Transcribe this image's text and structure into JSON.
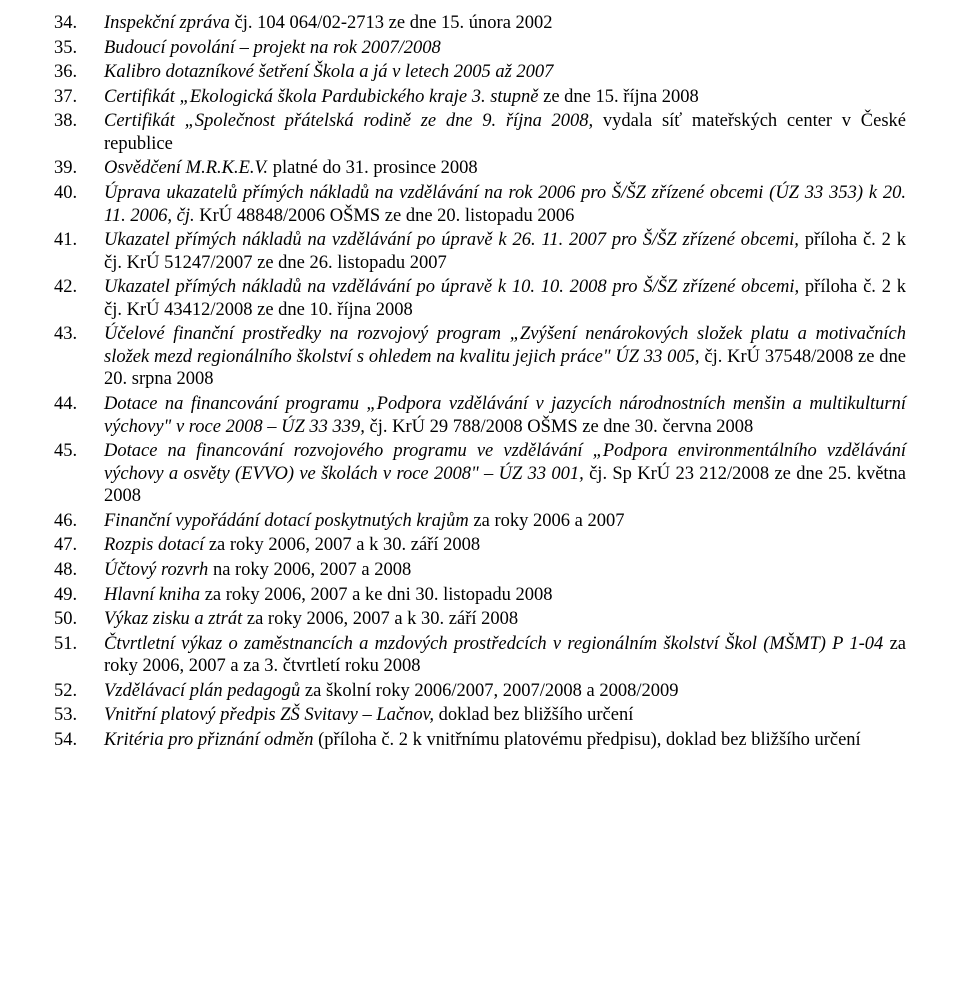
{
  "items": [
    {
      "n": "34.",
      "segs": [
        {
          "t": "Inspekční zpráva ",
          "i": true
        },
        {
          "t": "čj. 104 064/02-2713 ze dne 15. února 2002"
        }
      ]
    },
    {
      "n": "35.",
      "segs": [
        {
          "t": "Budoucí povolání – projekt na rok 2007/2008",
          "i": true
        }
      ]
    },
    {
      "n": "36.",
      "segs": [
        {
          "t": "Kalibro dotazníkové šetření Škola a já v letech 2005 až 2007",
          "i": true
        }
      ]
    },
    {
      "n": "37.",
      "segs": [
        {
          "t": "Certifikát „Ekologická škola Pardubického kraje 3. stupně ",
          "i": true
        },
        {
          "t": "ze dne 15. října 2008"
        }
      ]
    },
    {
      "n": "38.",
      "segs": [
        {
          "t": "Certifikát „Společnost přátelská rodině ze dne 9. října 2008, ",
          "i": true
        },
        {
          "t": "vydala síť mateřských center v České republice"
        }
      ]
    },
    {
      "n": "39.",
      "segs": [
        {
          "t": "Osvědčení M.R.K.E.V. ",
          "i": true
        },
        {
          "t": "platné do 31. prosince 2008"
        }
      ]
    },
    {
      "n": "40.",
      "segs": [
        {
          "t": "Úprava ukazatelů přímých nákladů na vzdělávání na rok 2006 pro Š/ŠZ zřízené obcemi (ÚZ 33 353) k 20. 11. 2006, čj. ",
          "i": true
        },
        {
          "t": "KrÚ 48848/2006 OŠMS ze dne 20. listopadu 2006"
        }
      ]
    },
    {
      "n": "41.",
      "segs": [
        {
          "t": "Ukazatel přímých nákladů na vzdělávání po úpravě k 26. 11. 2007 pro Š/ŠZ zřízené obcemi, ",
          "i": true
        },
        {
          "t": "příloha č. 2 k čj. KrÚ 51247/2007 ze dne 26. listopadu 2007"
        }
      ]
    },
    {
      "n": "42.",
      "segs": [
        {
          "t": "Ukazatel přímých nákladů na vzdělávání po úpravě k 10. 10. 2008 pro Š/ŠZ zřízené obcemi, ",
          "i": true
        },
        {
          "t": "příloha č. 2 k čj. KrÚ 43412/2008 ze dne 10. října 2008"
        }
      ]
    },
    {
      "n": "43.",
      "segs": [
        {
          "t": "Účelové finanční prostředky na rozvojový program „Zvýšení nenárokových složek platu a motivačních složek mezd regionálního školství s ohledem na kvalitu jejich práce\" ÚZ 33 005, ",
          "i": true
        },
        {
          "t": "čj. KrÚ 37548/2008 ze dne 20. srpna 2008"
        }
      ]
    },
    {
      "n": "44.",
      "segs": [
        {
          "t": "Dotace na financování programu „Podpora vzdělávání v jazycích národnostních menšin a multikulturní výchovy\" v roce 2008 – ÚZ 33 339, ",
          "i": true
        },
        {
          "t": "čj. KrÚ 29 788/2008 OŠMS ze dne 30. června 2008"
        }
      ]
    },
    {
      "n": "45.",
      "segs": [
        {
          "t": "Dotace na financování rozvojového programu ve vzdělávání „Podpora environmentálního vzdělávání výchovy a osvěty (EVVO) ve školách v roce 2008\" – ÚZ 33 001, ",
          "i": true
        },
        {
          "t": "čj. Sp KrÚ 23 212/2008 ze dne 25. května 2008"
        }
      ]
    },
    {
      "n": "46.",
      "segs": [
        {
          "t": "Finanční vypořádání dotací poskytnutých krajům ",
          "i": true
        },
        {
          "t": "za roky 2006 a 2007"
        }
      ]
    },
    {
      "n": "47.",
      "segs": [
        {
          "t": "Rozpis dotací ",
          "i": true
        },
        {
          "t": "za roky 2006, 2007 a k 30. září 2008"
        }
      ]
    },
    {
      "n": "48.",
      "segs": [
        {
          "t": "Účtový rozvrh ",
          "i": true
        },
        {
          "t": "na roky 2006, 2007 a 2008"
        }
      ]
    },
    {
      "n": "49.",
      "segs": [
        {
          "t": "Hlavní kniha ",
          "i": true
        },
        {
          "t": "za roky 2006, 2007 a ke dni 30. listopadu 2008"
        }
      ]
    },
    {
      "n": "50.",
      "segs": [
        {
          "t": "Výkaz zisku a ztrát ",
          "i": true
        },
        {
          "t": "za roky 2006, 2007 a k 30. září 2008"
        }
      ]
    },
    {
      "n": "51.",
      "segs": [
        {
          "t": "Čtvrtletní výkaz o zaměstnancích a mzdových prostředcích v regionálním školství Škol (MŠMT) P 1-04 ",
          "i": true
        },
        {
          "t": "za roky 2006, 2007 a za 3. čtvrtletí roku 2008"
        }
      ]
    },
    {
      "n": "52.",
      "segs": [
        {
          "t": "Vzdělávací plán pedagogů ",
          "i": true
        },
        {
          "t": "za školní roky 2006/2007, 2007/2008 a 2008/2009"
        }
      ]
    },
    {
      "n": "53.",
      "segs": [
        {
          "t": "Vnitřní platový předpis ZŠ Svitavy – Lačnov, ",
          "i": true
        },
        {
          "t": "doklad bez bližšího určení"
        }
      ]
    },
    {
      "n": "54.",
      "segs": [
        {
          "t": "Kritéria pro přiznání odměn ",
          "i": true
        },
        {
          "t": "(příloha č. 2 k vnitřnímu platovému předpisu), doklad bez bližšího určení"
        }
      ]
    }
  ]
}
